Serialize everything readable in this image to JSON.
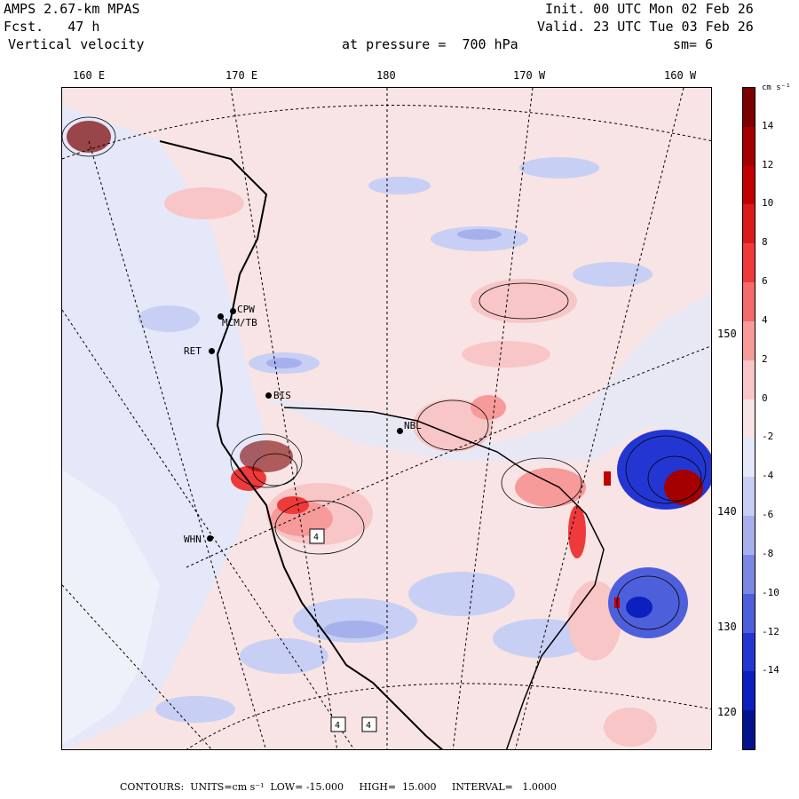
{
  "header": {
    "model": "AMPS 2.67-km MPAS",
    "forecast": "Fcst.   47 h",
    "field": "Vertical velocity",
    "init": "Init. 00 UTC Mon 02 Feb 26",
    "valid": "Valid. 23 UTC Tue 03 Feb 26",
    "pressure": "at pressure =  700 hPa",
    "smoothing": "sm= 6"
  },
  "longitude_labels": [
    "160 E",
    "170 E",
    "180",
    "170 W",
    "160 W"
  ],
  "latitude_labels": [
    "150 W",
    "140 W",
    "130 W",
    "120 W"
  ],
  "stations": [
    "CPW",
    "MCM/TB",
    "RET",
    "BIS",
    "NBL",
    "WHN"
  ],
  "colorbar": {
    "units": "cm s⁻¹",
    "tick_labels": [
      "14",
      "12",
      "10",
      "8",
      "6",
      "4",
      "2",
      "0",
      "-2",
      "-4",
      "-6",
      "-8",
      "-10",
      "-12",
      "-14"
    ],
    "colors": [
      "#7b0000",
      "#a50000",
      "#c30000",
      "#dc1a1a",
      "#ee3a3a",
      "#f56a6a",
      "#f79a9a",
      "#f8c6c6",
      "#f8e4e4",
      "#e4e8f8",
      "#c8cff4",
      "#a6b0ec",
      "#7b88e3",
      "#4e5fdb",
      "#2436d2",
      "#0c1fbf",
      "#05128e"
    ]
  },
  "contour_labels": [
    "4",
    "4",
    "4"
  ],
  "footer": "CONTOURS:  UNITS=cm s⁻¹  LOW= -15.000     HIGH=  15.000     INTERVAL=   1.0000"
}
